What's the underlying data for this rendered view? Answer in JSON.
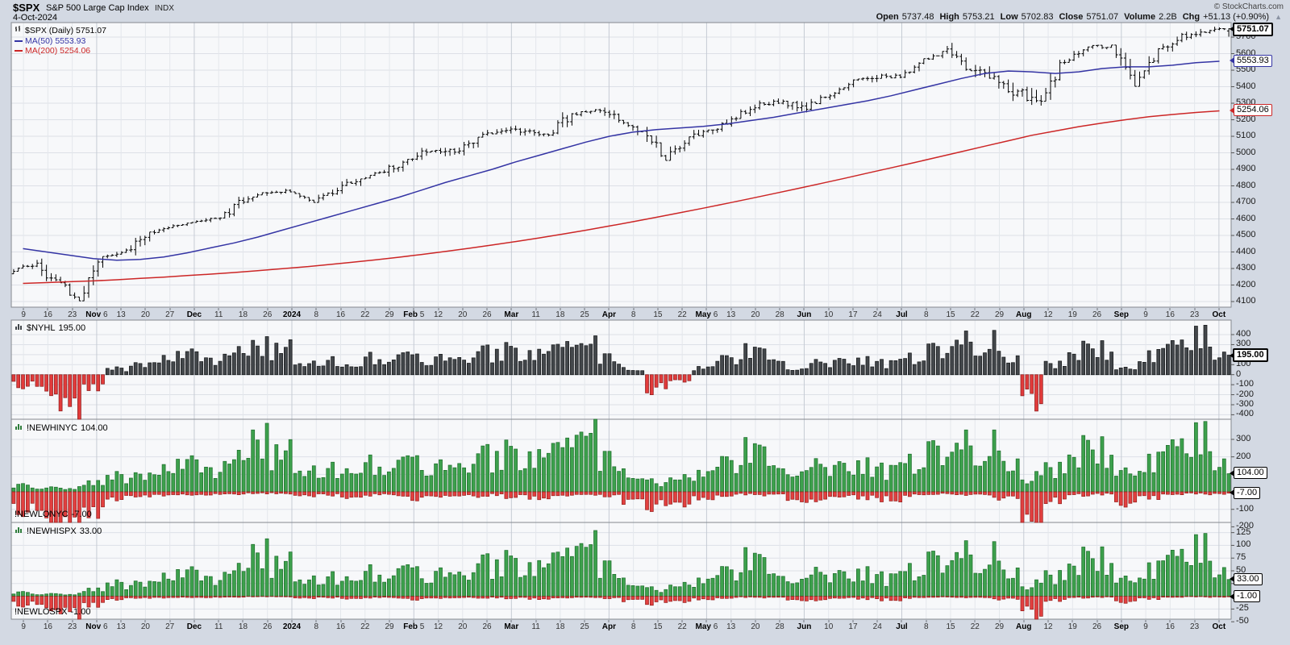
{
  "header": {
    "symbol": "$SPX",
    "name": "S&P 500 Large Cap Index",
    "exchange": "INDX",
    "date": "4-Oct-2024",
    "credit": "© StockCharts.com",
    "change_up_icon": "▲",
    "quote": [
      {
        "label": "Open",
        "value": "5737.48"
      },
      {
        "label": "High",
        "value": "5753.21"
      },
      {
        "label": "Low",
        "value": "5702.83"
      },
      {
        "label": "Close",
        "value": "5751.07"
      },
      {
        "label": "Volume",
        "value": "2.2B"
      },
      {
        "label": "Chg",
        "value": "+51.13 (+0.90%)"
      }
    ]
  },
  "legend": [
    {
      "icon": "ohlc-icon",
      "label": "$SPX (Daily) 5751.07",
      "color": "#000000"
    },
    {
      "icon": "line-icon",
      "label": "MA(50) 5553.93",
      "color": "#3434a4"
    },
    {
      "icon": "line-icon",
      "label": "MA(200) 5254.06",
      "color": "#cc2626"
    }
  ],
  "x_labels": [
    {
      "t": "9"
    },
    {
      "t": "16"
    },
    {
      "t": "23"
    },
    {
      "t": "Nov 6",
      "b": true
    },
    {
      "t": "13"
    },
    {
      "t": "20"
    },
    {
      "t": "27"
    },
    {
      "t": "Dec",
      "b": true
    },
    {
      "t": "11"
    },
    {
      "t": "18"
    },
    {
      "t": "26"
    },
    {
      "t": "2024",
      "b": true
    },
    {
      "t": "8"
    },
    {
      "t": "16"
    },
    {
      "t": "22"
    },
    {
      "t": "29"
    },
    {
      "t": "Feb 5",
      "b": true
    },
    {
      "t": "12"
    },
    {
      "t": "20"
    },
    {
      "t": "26"
    },
    {
      "t": "Mar",
      "b": true
    },
    {
      "t": "11"
    },
    {
      "t": "18"
    },
    {
      "t": "25"
    },
    {
      "t": "Apr",
      "b": true
    },
    {
      "t": "8"
    },
    {
      "t": "15"
    },
    {
      "t": "22"
    },
    {
      "t": "May 6",
      "b": true
    },
    {
      "t": "13"
    },
    {
      "t": "20"
    },
    {
      "t": "28"
    },
    {
      "t": "Jun",
      "b": true
    },
    {
      "t": "10"
    },
    {
      "t": "17"
    },
    {
      "t": "24"
    },
    {
      "t": "Jul",
      "b": true
    },
    {
      "t": "8"
    },
    {
      "t": "15"
    },
    {
      "t": "22"
    },
    {
      "t": "29"
    },
    {
      "t": "Aug",
      "b": true
    },
    {
      "t": "12"
    },
    {
      "t": "19"
    },
    {
      "t": "26"
    },
    {
      "t": "Sep",
      "b": true
    },
    {
      "t": "9"
    },
    {
      "t": "16"
    },
    {
      "t": "23"
    },
    {
      "t": "Oct",
      "b": true
    }
  ],
  "chart_data": [
    {
      "id": "price",
      "type": "ohlc",
      "label": "$SPX (Daily)",
      "last_str": "5751.07",
      "bar_color": "#000000",
      "ylim": [
        4066,
        5788
      ],
      "y_ticks": [
        5700,
        5600,
        5500,
        5400,
        5300,
        5200,
        5100,
        5000,
        4900,
        4800,
        4700,
        4600,
        4500,
        4400,
        4300,
        4200,
        4100
      ],
      "last_ohlc": [
        5737.48,
        5753.21,
        5702.83,
        5751.07
      ],
      "weekly_high": [
        4385,
        4393,
        4259,
        4373,
        4421,
        4521,
        4568,
        4599,
        4609,
        4738,
        4778,
        4793,
        4754,
        4798,
        4842,
        4906,
        4975,
        5030,
        5048,
        5095,
        5149,
        5165,
        5179,
        5252,
        5264,
        5274,
        5228,
        5168,
        5114,
        5139,
        5239,
        5325,
        5342,
        5315,
        5362,
        5447,
        5505,
        5523,
        5570,
        5656,
        5670,
        5585,
        5566,
        5400,
        5563,
        5643,
        5652,
        5648,
        5636,
        5733,
        5767,
        5767
      ],
      "weekly_low": [
        4283,
        4223,
        4104,
        4103,
        4343,
        4347,
        4499,
        4537,
        4546,
        4593,
        4697,
        4736,
        4682,
        4682,
        4714,
        4844,
        4845,
        4918,
        4920,
        4946,
        5057,
        5057,
        5092,
        5091,
        5213,
        5139,
        5106,
        4954,
        4963,
        5013,
        5101,
        5222,
        5256,
        5192,
        5234,
        5327,
        5390,
        5451,
        5446,
        5563,
        5497,
        5390,
        5300,
        5119,
        5320,
        5546,
        5560,
        5402,
        5434,
        5604,
        5674,
        5697
      ],
      "weekly_close": [
        4328,
        4224,
        4117,
        4358,
        4415,
        4514,
        4559,
        4594,
        4604,
        4719,
        4754,
        4770,
        4697,
        4784,
        4840,
        4891,
        4959,
        5027,
        5006,
        5089,
        5137,
        5124,
        5117,
        5234,
        5254,
        5204,
        5123,
        4967,
        5100,
        5128,
        5223,
        5303,
        5305,
        5278,
        5347,
        5432,
        5465,
        5460,
        5567,
        5615,
        5505,
        5459,
        5347,
        5344,
        5554,
        5635,
        5648,
        5408,
        5626,
        5703,
        5738,
        5751.07
      ],
      "ma50": {
        "label": "MA(50)",
        "last": 5553.93,
        "color": "#3434a4",
        "values": [
          4420,
          4400,
          4380,
          4360,
          4350,
          4355,
          4370,
          4395,
          4425,
          4455,
          4490,
          4530,
          4570,
          4610,
          4650,
          4690,
          4730,
          4775,
          4820,
          4860,
          4900,
          4945,
          4985,
          5025,
          5065,
          5100,
          5125,
          5140,
          5150,
          5160,
          5175,
          5195,
          5215,
          5240,
          5265,
          5290,
          5315,
          5345,
          5380,
          5415,
          5450,
          5480,
          5495,
          5490,
          5480,
          5490,
          5510,
          5520,
          5520,
          5530,
          5545,
          5553.93
        ]
      },
      "ma200": {
        "label": "MA(200)",
        "last": 5254.06,
        "color": "#cc2626",
        "values": [
          4210,
          4215,
          4220,
          4225,
          4232,
          4240,
          4248,
          4257,
          4266,
          4276,
          4287,
          4298,
          4310,
          4323,
          4337,
          4352,
          4368,
          4385,
          4403,
          4422,
          4442,
          4463,
          4485,
          4508,
          4532,
          4557,
          4583,
          4610,
          4637,
          4665,
          4694,
          4723,
          4753,
          4783,
          4814,
          4845,
          4877,
          4909,
          4941,
          4974,
          5007,
          5040,
          5073,
          5106,
          5132,
          5158,
          5180,
          5200,
          5218,
          5232,
          5244,
          5254.06
        ]
      },
      "callouts": [
        {
          "value": 5751.07,
          "text": "5751.07",
          "color": "#000000",
          "bold": true
        },
        {
          "value": 5553.93,
          "text": "5553.93",
          "color": "#3434a4"
        },
        {
          "value": 5254.06,
          "text": "5254.06",
          "color": "#cc2626"
        }
      ]
    },
    {
      "id": "nyhl",
      "type": "bar",
      "label": "$NYHL",
      "last": 195,
      "last_str": "195.00",
      "ylim": [
        -445,
        545
      ],
      "y_ticks": [
        400,
        300,
        200,
        100,
        0,
        -100,
        -200,
        -300,
        -400
      ],
      "pos_color": "#43474b",
      "neg_color": "#e23b3b",
      "pos_stroke": "#17191b",
      "neg_stroke": "#8e1f1f",
      "weekly": [
        -120,
        -220,
        -420,
        -150,
        60,
        120,
        160,
        200,
        180,
        260,
        320,
        280,
        120,
        150,
        90,
        180,
        220,
        160,
        200,
        180,
        230,
        250,
        200,
        280,
        300,
        180,
        60,
        -160,
        -60,
        80,
        180,
        260,
        220,
        60,
        120,
        160,
        140,
        120,
        200,
        300,
        420,
        350,
        220,
        -280,
        120,
        260,
        280,
        60,
        200,
        320,
        380,
        240
      ],
      "callouts": [
        {
          "value": 195,
          "text": "195.00",
          "color": "#000000",
          "bold": true
        }
      ]
    },
    {
      "id": "nyc",
      "type": "dual-bar",
      "hi_label": "!NEWHINYC",
      "hi_last": 104,
      "hi_last_str": "104.00",
      "lo_label": "!NEWLONYC",
      "lo_last": -7,
      "lo_last_str": "-7.00",
      "ylim": [
        -175,
        415
      ],
      "y_ticks": [
        300,
        200,
        100,
        0,
        -100,
        -200
      ],
      "hi_color": "#3da14d",
      "lo_color": "#e24040",
      "hi_stroke": "#1f6f2d",
      "lo_stroke": "#99221f",
      "weekly_hi": [
        40,
        30,
        25,
        60,
        90,
        110,
        130,
        160,
        150,
        220,
        330,
        240,
        130,
        140,
        120,
        170,
        200,
        160,
        180,
        170,
        210,
        230,
        190,
        260,
        330,
        200,
        110,
        60,
        80,
        120,
        190,
        260,
        220,
        120,
        150,
        170,
        150,
        130,
        200,
        280,
        340,
        280,
        220,
        90,
        150,
        250,
        260,
        110,
        180,
        280,
        310,
        200
      ],
      "weekly_lo": [
        -120,
        -200,
        -260,
        -140,
        -40,
        -30,
        -20,
        -15,
        -20,
        -15,
        -10,
        -10,
        -25,
        -20,
        -35,
        -20,
        -25,
        -40,
        -30,
        -25,
        -20,
        -30,
        -35,
        -20,
        -15,
        -25,
        -60,
        -90,
        -70,
        -45,
        -25,
        -15,
        -20,
        -60,
        -45,
        -30,
        -35,
        -45,
        -25,
        -15,
        -20,
        -25,
        -45,
        -250,
        -60,
        -20,
        -15,
        -70,
        -35,
        -15,
        -10,
        -15
      ],
      "callouts": [
        {
          "value": 104,
          "text": "104.00",
          "color": "#000000"
        },
        {
          "value": -7,
          "text": "-7.00",
          "color": "#000000"
        }
      ]
    },
    {
      "id": "spxhl",
      "type": "dual-bar",
      "hi_label": "!NEWHISPX",
      "hi_last": 33,
      "hi_last_str": "33.00",
      "lo_label": "!NEWLOSPX",
      "lo_last": -1,
      "lo_last_str": "-1.00",
      "ylim": [
        -45,
        145
      ],
      "y_ticks": [
        125,
        100,
        75,
        50,
        25,
        0,
        -25,
        -50
      ],
      "hi_color": "#3da14d",
      "lo_color": "#e24040",
      "hi_stroke": "#1f6f2d",
      "lo_stroke": "#99221f",
      "weekly_hi": [
        8,
        6,
        5,
        15,
        25,
        30,
        38,
        45,
        42,
        60,
        95,
        70,
        35,
        40,
        35,
        50,
        60,
        45,
        55,
        50,
        65,
        70,
        55,
        80,
        100,
        60,
        30,
        15,
        22,
        35,
        55,
        80,
        65,
        35,
        45,
        50,
        45,
        38,
        60,
        85,
        105,
        85,
        65,
        25,
        45,
        75,
        80,
        32,
        55,
        85,
        95,
        60
      ],
      "weekly_lo": [
        -18,
        -30,
        -40,
        -20,
        -6,
        -4,
        -3,
        -2,
        -3,
        -2,
        -1,
        -1,
        -4,
        -3,
        -5,
        -3,
        -4,
        -6,
        -4,
        -3,
        -3,
        -4,
        -5,
        -3,
        -2,
        -4,
        -9,
        -14,
        -10,
        -7,
        -4,
        -2,
        -3,
        -9,
        -7,
        -4,
        -5,
        -7,
        -4,
        -2,
        -3,
        -4,
        -7,
        -38,
        -9,
        -3,
        -2,
        -11,
        -5,
        -2,
        -1,
        -2
      ],
      "callouts": [
        {
          "value": 33,
          "text": "33.00",
          "color": "#000000"
        },
        {
          "value": -1,
          "text": "-1.00",
          "color": "#000000"
        }
      ]
    }
  ]
}
